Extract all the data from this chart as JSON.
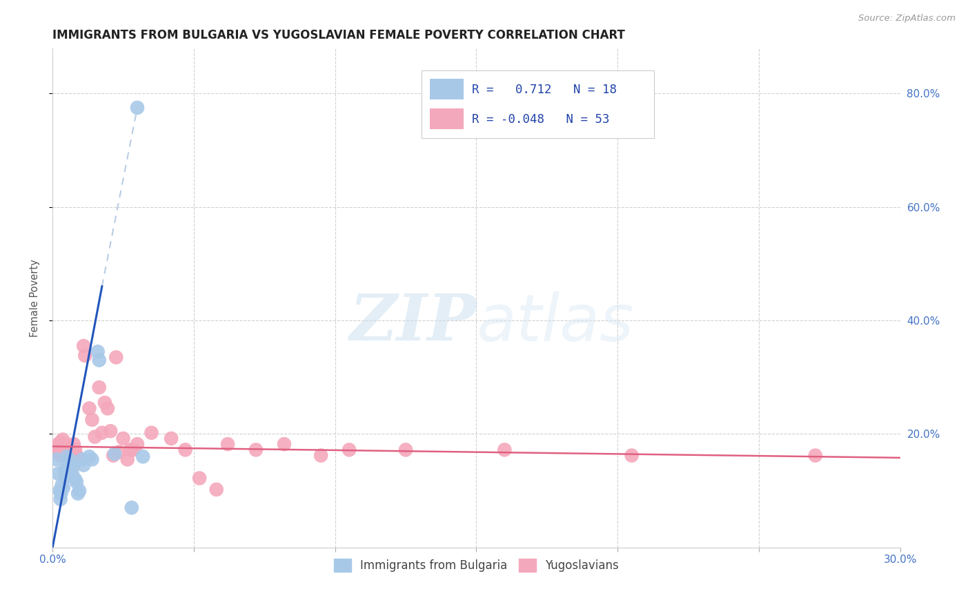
{
  "title": "IMMIGRANTS FROM BULGARIA VS YUGOSLAVIAN FEMALE POVERTY CORRELATION CHART",
  "source": "Source: ZipAtlas.com",
  "ylabel": "Female Poverty",
  "right_yticks": [
    "80.0%",
    "60.0%",
    "40.0%",
    "20.0%"
  ],
  "right_ytick_vals": [
    0.8,
    0.6,
    0.4,
    0.2
  ],
  "xlim": [
    0.0,
    0.3
  ],
  "ylim": [
    0.0,
    0.88
  ],
  "bulgaria_color": "#a8c8e8",
  "yugoslavia_color": "#f4a8bc",
  "bulgaria_line_color": "#2255bb",
  "yugoslavia_line_color": "#e06080",
  "trendline_dashed_color": "#b8cce4",
  "background_color": "#ffffff",
  "watermark_zip": "ZIP",
  "watermark_atlas": "atlas",
  "bulgaria_scatter": [
    [
      0.0015,
      0.155
    ],
    [
      0.002,
      0.13
    ],
    [
      0.0025,
      0.1
    ],
    [
      0.0028,
      0.085
    ],
    [
      0.003,
      0.095
    ],
    [
      0.0033,
      0.11
    ],
    [
      0.0038,
      0.105
    ],
    [
      0.0042,
      0.135
    ],
    [
      0.0046,
      0.125
    ],
    [
      0.005,
      0.16
    ],
    [
      0.0055,
      0.148
    ],
    [
      0.006,
      0.155
    ],
    [
      0.0065,
      0.14
    ],
    [
      0.007,
      0.13
    ],
    [
      0.0075,
      0.145
    ],
    [
      0.008,
      0.12
    ],
    [
      0.0085,
      0.115
    ],
    [
      0.009,
      0.095
    ],
    [
      0.0095,
      0.1
    ],
    [
      0.0105,
      0.155
    ],
    [
      0.011,
      0.145
    ],
    [
      0.013,
      0.16
    ],
    [
      0.014,
      0.155
    ],
    [
      0.016,
      0.345
    ],
    [
      0.0165,
      0.33
    ],
    [
      0.022,
      0.165
    ],
    [
      0.028,
      0.07
    ],
    [
      0.032,
      0.16
    ]
  ],
  "yugoslavia_scatter": [
    [
      0.0008,
      0.175
    ],
    [
      0.0012,
      0.178
    ],
    [
      0.0015,
      0.168
    ],
    [
      0.0018,
      0.172
    ],
    [
      0.002,
      0.182
    ],
    [
      0.0022,
      0.165
    ],
    [
      0.0025,
      0.175
    ],
    [
      0.0028,
      0.185
    ],
    [
      0.003,
      0.162
    ],
    [
      0.0033,
      0.175
    ],
    [
      0.0036,
      0.19
    ],
    [
      0.004,
      0.178
    ],
    [
      0.0043,
      0.168
    ],
    [
      0.0046,
      0.182
    ],
    [
      0.005,
      0.172
    ],
    [
      0.0055,
      0.165
    ],
    [
      0.006,
      0.18
    ],
    [
      0.0065,
      0.175
    ],
    [
      0.007,
      0.168
    ],
    [
      0.0075,
      0.182
    ],
    [
      0.008,
      0.172
    ],
    [
      0.0085,
      0.162
    ],
    [
      0.011,
      0.355
    ],
    [
      0.0115,
      0.338
    ],
    [
      0.013,
      0.245
    ],
    [
      0.014,
      0.225
    ],
    [
      0.015,
      0.195
    ],
    [
      0.0165,
      0.282
    ],
    [
      0.0175,
      0.202
    ],
    [
      0.0185,
      0.255
    ],
    [
      0.0195,
      0.245
    ],
    [
      0.0205,
      0.205
    ],
    [
      0.0215,
      0.162
    ],
    [
      0.0225,
      0.335
    ],
    [
      0.0235,
      0.168
    ],
    [
      0.025,
      0.192
    ],
    [
      0.0265,
      0.155
    ],
    [
      0.0275,
      0.172
    ],
    [
      0.0285,
      0.172
    ],
    [
      0.03,
      0.182
    ],
    [
      0.035,
      0.202
    ],
    [
      0.042,
      0.192
    ],
    [
      0.047,
      0.172
    ],
    [
      0.052,
      0.122
    ],
    [
      0.058,
      0.102
    ],
    [
      0.062,
      0.182
    ],
    [
      0.072,
      0.172
    ],
    [
      0.082,
      0.182
    ],
    [
      0.095,
      0.162
    ],
    [
      0.105,
      0.172
    ],
    [
      0.125,
      0.172
    ],
    [
      0.16,
      0.172
    ],
    [
      0.205,
      0.162
    ],
    [
      0.27,
      0.162
    ]
  ],
  "bulgaria_outlier": [
    0.03,
    0.775
  ],
  "bulgaria_trendline_solid": [
    [
      0.0,
      0.0
    ],
    [
      0.0175,
      0.46
    ]
  ],
  "yugoslavia_trendline": [
    [
      0.0,
      0.178
    ],
    [
      0.3,
      0.158
    ]
  ],
  "dashed_trendline": [
    [
      0.0175,
      0.46
    ],
    [
      0.03,
      0.775
    ]
  ]
}
